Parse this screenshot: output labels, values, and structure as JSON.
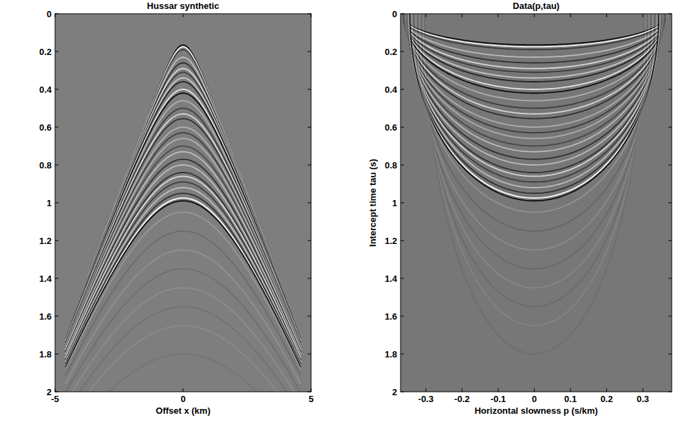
{
  "chart_data": [
    {
      "type": "hyperbola",
      "title": "Hussar synthetic",
      "x_label": "Offset x (km)",
      "xlim": [
        -5,
        5
      ],
      "ylim": [
        0,
        2
      ],
      "xticks": [
        -5,
        0,
        5
      ],
      "yticks": [
        0,
        0.2,
        0.4,
        0.6,
        0.8,
        1,
        1.2,
        1.4,
        1.6,
        1.8,
        2
      ],
      "offset_range": [
        -4.6,
        4.6
      ],
      "events": [
        {
          "t0": 0.165,
          "velocity": 2.7,
          "amplitude": -0.9
        },
        {
          "t0": 0.175,
          "velocity": 2.7,
          "amplitude": 0.9
        },
        {
          "t0": 0.19,
          "velocity": 2.7,
          "amplitude": -0.5
        },
        {
          "t0": 0.23,
          "velocity": 2.71,
          "amplitude": 0.5
        },
        {
          "t0": 0.26,
          "velocity": 2.72,
          "amplitude": -0.6
        },
        {
          "t0": 0.29,
          "velocity": 2.73,
          "amplitude": 0.7
        },
        {
          "t0": 0.31,
          "velocity": 2.73,
          "amplitude": -0.5
        },
        {
          "t0": 0.34,
          "velocity": 2.74,
          "amplitude": 0.6
        },
        {
          "t0": 0.36,
          "velocity": 2.75,
          "amplitude": -0.7
        },
        {
          "t0": 0.4,
          "velocity": 2.76,
          "amplitude": 0.8
        },
        {
          "t0": 0.42,
          "velocity": 2.76,
          "amplitude": -0.9
        },
        {
          "t0": 0.46,
          "velocity": 2.77,
          "amplitude": 0.4
        },
        {
          "t0": 0.5,
          "velocity": 2.78,
          "amplitude": -0.5
        },
        {
          "t0": 0.53,
          "velocity": 2.79,
          "amplitude": 0.7
        },
        {
          "t0": 0.555,
          "velocity": 2.79,
          "amplitude": -0.6
        },
        {
          "t0": 0.6,
          "velocity": 2.8,
          "amplitude": 0.4
        },
        {
          "t0": 0.63,
          "velocity": 2.81,
          "amplitude": -0.5
        },
        {
          "t0": 0.66,
          "velocity": 2.82,
          "amplitude": 0.4
        },
        {
          "t0": 0.7,
          "velocity": 2.83,
          "amplitude": -0.4
        },
        {
          "t0": 0.73,
          "velocity": 2.84,
          "amplitude": 0.5
        },
        {
          "t0": 0.77,
          "velocity": 2.84,
          "amplitude": -0.6
        },
        {
          "t0": 0.8,
          "velocity": 2.85,
          "amplitude": 0.5
        },
        {
          "t0": 0.84,
          "velocity": 2.86,
          "amplitude": -0.6
        },
        {
          "t0": 0.86,
          "velocity": 2.87,
          "amplitude": 0.7
        },
        {
          "t0": 0.89,
          "velocity": 2.87,
          "amplitude": -0.5
        },
        {
          "t0": 0.92,
          "velocity": 2.88,
          "amplitude": 0.5
        },
        {
          "t0": 0.95,
          "velocity": 2.89,
          "amplitude": -0.6
        },
        {
          "t0": 0.975,
          "velocity": 2.89,
          "amplitude": 1.0
        },
        {
          "t0": 0.99,
          "velocity": 2.9,
          "amplitude": -0.9
        },
        {
          "t0": 1.05,
          "velocity": 2.95,
          "amplitude": 0.2
        },
        {
          "t0": 1.15,
          "velocity": 3.0,
          "amplitude": -0.15
        },
        {
          "t0": 1.25,
          "velocity": 3.05,
          "amplitude": 0.15
        },
        {
          "t0": 1.35,
          "velocity": 3.1,
          "amplitude": -0.12
        },
        {
          "t0": 1.45,
          "velocity": 3.15,
          "amplitude": 0.12
        },
        {
          "t0": 1.55,
          "velocity": 3.2,
          "amplitude": -0.1
        },
        {
          "t0": 1.65,
          "velocity": 3.25,
          "amplitude": 0.1
        },
        {
          "t0": 1.8,
          "velocity": 3.3,
          "amplitude": -0.08
        }
      ]
    },
    {
      "type": "ellipse",
      "title": "Data(p,tau)",
      "x_label": "Horizontal slowness p (s/km)",
      "y_label": "Intercept time tau (s)",
      "xlim": [
        -0.37,
        0.38
      ],
      "ylim": [
        0,
        2
      ],
      "xticks": [
        -0.3,
        -0.2,
        -0.1,
        0,
        0.1,
        0.2,
        0.3
      ],
      "yticks": [
        0,
        0.2,
        0.4,
        0.6,
        0.8,
        1,
        1.2,
        1.4,
        1.6,
        1.8,
        2
      ],
      "events": [
        {
          "t0": 0.165,
          "velocity": 2.7,
          "amplitude": -0.9
        },
        {
          "t0": 0.175,
          "velocity": 2.7,
          "amplitude": 0.9
        },
        {
          "t0": 0.19,
          "velocity": 2.7,
          "amplitude": -0.5
        },
        {
          "t0": 0.23,
          "velocity": 2.71,
          "amplitude": 0.5
        },
        {
          "t0": 0.26,
          "velocity": 2.72,
          "amplitude": -0.6
        },
        {
          "t0": 0.29,
          "velocity": 2.73,
          "amplitude": 0.7
        },
        {
          "t0": 0.31,
          "velocity": 2.73,
          "amplitude": -0.5
        },
        {
          "t0": 0.34,
          "velocity": 2.74,
          "amplitude": 0.6
        },
        {
          "t0": 0.36,
          "velocity": 2.75,
          "amplitude": -0.7
        },
        {
          "t0": 0.4,
          "velocity": 2.76,
          "amplitude": 0.8
        },
        {
          "t0": 0.42,
          "velocity": 2.76,
          "amplitude": -0.9
        },
        {
          "t0": 0.46,
          "velocity": 2.77,
          "amplitude": 0.4
        },
        {
          "t0": 0.5,
          "velocity": 2.78,
          "amplitude": -0.5
        },
        {
          "t0": 0.53,
          "velocity": 2.79,
          "amplitude": 0.7
        },
        {
          "t0": 0.555,
          "velocity": 2.79,
          "amplitude": -0.6
        },
        {
          "t0": 0.6,
          "velocity": 2.8,
          "amplitude": 0.4
        },
        {
          "t0": 0.63,
          "velocity": 2.81,
          "amplitude": -0.5
        },
        {
          "t0": 0.66,
          "velocity": 2.82,
          "amplitude": 0.4
        },
        {
          "t0": 0.7,
          "velocity": 2.83,
          "amplitude": -0.4
        },
        {
          "t0": 0.73,
          "velocity": 2.84,
          "amplitude": 0.5
        },
        {
          "t0": 0.77,
          "velocity": 2.84,
          "amplitude": -0.6
        },
        {
          "t0": 0.8,
          "velocity": 2.85,
          "amplitude": 0.5
        },
        {
          "t0": 0.84,
          "velocity": 2.86,
          "amplitude": -0.6
        },
        {
          "t0": 0.86,
          "velocity": 2.87,
          "amplitude": 0.7
        },
        {
          "t0": 0.89,
          "velocity": 2.87,
          "amplitude": -0.5
        },
        {
          "t0": 0.92,
          "velocity": 2.88,
          "amplitude": 0.5
        },
        {
          "t0": 0.95,
          "velocity": 2.89,
          "amplitude": -0.6
        },
        {
          "t0": 0.975,
          "velocity": 2.89,
          "amplitude": 1.0
        },
        {
          "t0": 0.99,
          "velocity": 2.9,
          "amplitude": -0.9
        },
        {
          "t0": 1.05,
          "velocity": 2.95,
          "amplitude": 0.2
        },
        {
          "t0": 1.15,
          "velocity": 3.0,
          "amplitude": -0.15
        },
        {
          "t0": 1.25,
          "velocity": 3.05,
          "amplitude": 0.15
        },
        {
          "t0": 1.35,
          "velocity": 3.1,
          "amplitude": -0.12
        },
        {
          "t0": 1.45,
          "velocity": 3.15,
          "amplitude": 0.12
        },
        {
          "t0": 1.55,
          "velocity": 3.2,
          "amplitude": -0.1
        },
        {
          "t0": 1.65,
          "velocity": 3.25,
          "amplitude": 0.1
        },
        {
          "t0": 1.8,
          "velocity": 3.3,
          "amplitude": -0.08
        }
      ]
    }
  ]
}
